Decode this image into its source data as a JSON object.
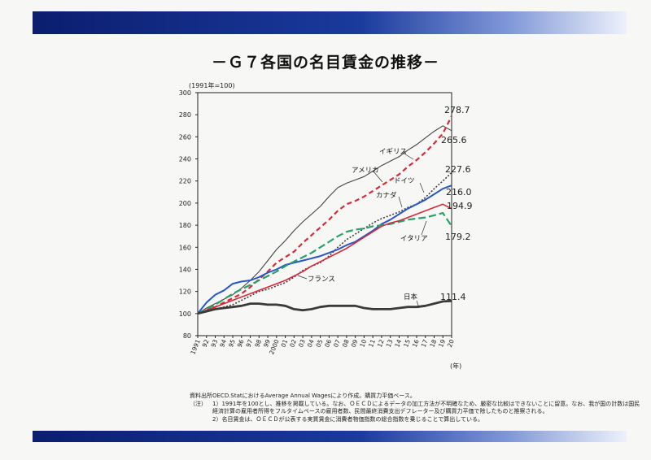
{
  "header": {
    "title": "－Ｇ７各国の名目賃金の推移－"
  },
  "colors": {
    "uk": "#444444",
    "us": "#d62b3a",
    "germany": "#404040",
    "canada": "#2a57c4",
    "italy": "#2aa06b",
    "france": "#d62b3a",
    "japan": "#3a3a3a",
    "band": "#1a3a9c"
  },
  "chart_data": {
    "type": "line",
    "title": "－Ｇ７各国の名目賃金の推移－",
    "ylabel": "(1991年=100)",
    "xlabel": "(年)",
    "ylim": [
      80,
      300
    ],
    "yticks": [
      80,
      100,
      120,
      140,
      160,
      180,
      200,
      220,
      240,
      260,
      280,
      300
    ],
    "categories": [
      "1991",
      "92",
      "93",
      "94",
      "95",
      "96",
      "97",
      "98",
      "99",
      "2000",
      "01",
      "02",
      "03",
      "04",
      "05",
      "06",
      "07",
      "08",
      "09",
      "10",
      "11",
      "12",
      "13",
      "14",
      "15",
      "16",
      "17",
      "18",
      "19",
      "20"
    ],
    "series": [
      {
        "name": "イギリス",
        "style": "solid-thin",
        "values": [
          100,
          105,
          109,
          113,
          117,
          123,
          130,
          138,
          148,
          158,
          166,
          175,
          183,
          190,
          197,
          206,
          214,
          218,
          221,
          224,
          229,
          234,
          238,
          242,
          248,
          253,
          259,
          265,
          270,
          265.6
        ]
      },
      {
        "name": "アメリカ",
        "style": "dashed-thick",
        "values": [
          100,
          103,
          106,
          110,
          114,
          118,
          124,
          131,
          138,
          146,
          151,
          156,
          164,
          171,
          178,
          185,
          193,
          199,
          202,
          206,
          211,
          216,
          221,
          226,
          233,
          239,
          246,
          254,
          263,
          278.7
        ]
      },
      {
        "name": "ドイツ",
        "style": "dotted",
        "values": [
          100,
          102,
          104,
          106,
          108,
          112,
          116,
          120,
          122,
          125,
          128,
          133,
          139,
          143,
          146,
          152,
          160,
          167,
          172,
          177,
          182,
          186,
          189,
          192,
          196,
          199,
          205,
          213,
          220,
          227.6
        ]
      },
      {
        "name": "カナダ",
        "style": "solid-thick",
        "values": [
          100,
          110,
          117,
          121,
          127,
          129,
          130,
          133,
          137,
          140,
          144,
          146,
          148,
          150,
          152,
          155,
          158,
          162,
          165,
          170,
          175,
          181,
          185,
          190,
          195,
          199,
          203,
          208,
          213,
          216.0
        ]
      },
      {
        "name": "イタリア",
        "style": "dashdot",
        "values": [
          100,
          104,
          108,
          113,
          118,
          122,
          126,
          130,
          134,
          138,
          143,
          147,
          151,
          155,
          160,
          165,
          170,
          174,
          176,
          177,
          179,
          180,
          181,
          183,
          185,
          186,
          187,
          189,
          191,
          179.2
        ]
      },
      {
        "name": "フランス",
        "style": "solid-red",
        "values": [
          100,
          103,
          106,
          109,
          112,
          115,
          118,
          121,
          124,
          127,
          130,
          134,
          138,
          143,
          147,
          151,
          155,
          159,
          164,
          169,
          174,
          179,
          182,
          184,
          187,
          190,
          193,
          196,
          199,
          194.9
        ]
      },
      {
        "name": "日本",
        "style": "solid-heavy",
        "values": [
          100,
          102,
          104,
          105,
          106,
          107,
          109,
          109,
          108,
          108,
          107,
          104,
          103,
          104,
          106,
          107,
          107,
          107,
          107,
          105,
          104,
          104,
          104,
          105,
          106,
          106,
          107,
          109,
          111,
          111.4
        ]
      }
    ],
    "end_labels": [
      "278.7",
      "265.6",
      "227.6",
      "216.0",
      "194.9",
      "179.2",
      "111.4"
    ]
  },
  "notes": {
    "source_head": "資料出所",
    "source_body": "OECD.StatにおけるAverage Annual Wagesにより作成。購買力平価ベース。",
    "note_head": "（注）",
    "note1": "1）1991年を100とし、推移を掲載している。なお、ＯＥＣＤによるデータの加工方法が不明確なため、厳密な比較はできないことに留意。なお、我が国の計数は国民経済計算の雇用者所得をフルタイムベースの雇用者数、民間最終消費支出デフレーター及び購買力平価で除したものと推察される。",
    "note2": "2）名目賃金は、ＯＥＣＤが公表する実質賃金に消費者物価指数の総合指数を乗じることで算出している。"
  }
}
